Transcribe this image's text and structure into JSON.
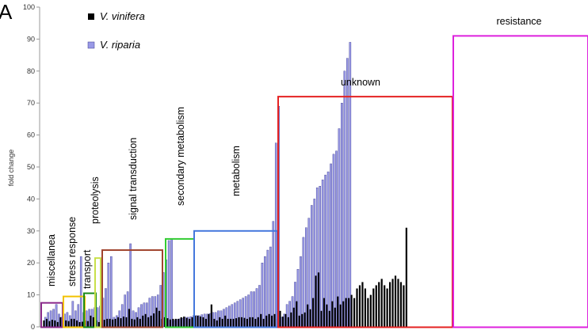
{
  "panel_label": "A",
  "chart_data": {
    "type": "bar",
    "ylabel": "fold change",
    "xlabel": "",
    "ylim": [
      0,
      100
    ],
    "yticks": [
      0,
      10,
      20,
      30,
      40,
      50,
      60,
      70,
      80,
      90,
      100
    ],
    "grid": false,
    "legend_position": "top-left",
    "series": [
      {
        "name": "V. vinifera",
        "color": "#000000",
        "values": [
          2,
          2.5,
          1.8,
          2.2,
          2,
          1.5,
          3,
          2.5,
          2,
          1.8,
          2.5,
          2.5,
          2,
          1.5,
          1.6,
          2,
          1.8,
          3.5,
          3,
          2,
          1.5,
          2,
          2.2,
          2.5,
          2.5,
          2.3,
          2.5,
          3,
          2.7,
          3.2,
          3,
          5.6,
          2.5,
          2.3,
          3,
          2.5,
          3.5,
          4,
          3,
          3.5,
          4.2,
          6,
          5,
          2.5,
          3,
          2.7,
          2.3,
          2.5,
          2.5,
          2.5,
          3,
          3.2,
          2.8,
          2.5,
          3,
          3.5,
          3.5,
          3.2,
          3,
          2.5,
          4,
          7,
          2.5,
          2,
          3,
          2.5,
          3.5,
          2.5,
          2.5,
          2.5,
          2.7,
          3,
          3,
          2.8,
          2.5,
          3,
          3,
          2.5,
          3,
          4,
          2.5,
          3.5,
          4,
          3.5,
          4,
          2.5,
          5,
          3.2,
          4,
          3,
          4.5,
          6,
          8,
          3.5,
          4,
          4.5,
          7,
          5.5,
          9,
          16,
          17,
          5,
          9,
          7,
          5,
          8,
          6,
          9.5,
          7,
          8,
          9,
          9,
          10,
          9,
          12,
          13,
          14,
          12,
          9,
          10,
          12,
          13,
          14,
          15,
          13,
          12,
          14,
          15,
          16,
          15,
          14,
          13,
          31
        ]
      },
      {
        "name": "V. riparia",
        "color": "#9999e6",
        "values": [
          3,
          4.5,
          5,
          5.5,
          7,
          4,
          3,
          4,
          4.5,
          3.5,
          8,
          5,
          7,
          22,
          4.5,
          5,
          5.5,
          5.5,
          6,
          6,
          6.5,
          9,
          12,
          20,
          22,
          3,
          3.5,
          5,
          7,
          10,
          11,
          26,
          5,
          4.5,
          6,
          7,
          7.5,
          7.5,
          9,
          9.5,
          9.5,
          10,
          13,
          17,
          21,
          27,
          27.5,
          2,
          2.3,
          2.5,
          2.7,
          3,
          3,
          3.2,
          3.5,
          3.5,
          3.5,
          3.8,
          4,
          4,
          4.2,
          4.5,
          4.5,
          5,
          5,
          5.5,
          6,
          6.5,
          7,
          7.5,
          8,
          8.5,
          9,
          9.5,
          10,
          11,
          11,
          12,
          13,
          20,
          22,
          24,
          25,
          33,
          57.5,
          69,
          3,
          4,
          7,
          8,
          9.5,
          14,
          18,
          22,
          28,
          31,
          34,
          38,
          40,
          43.5,
          44,
          46,
          47.5,
          48.5,
          51,
          54,
          55,
          62,
          70,
          80,
          84,
          89
        ]
      }
    ],
    "groups": [
      {
        "label": "miscellanea"
      },
      {
        "label": "stress response"
      },
      {
        "label": "transport"
      },
      {
        "label": "proteolysis"
      },
      {
        "label": "signal transduction"
      },
      {
        "label": "secondary metabolism"
      },
      {
        "label": "metabolism"
      },
      {
        "label": "unknown"
      },
      {
        "label": "resistance"
      }
    ],
    "group_colors": [
      "#8b2a8b",
      "#f2c200",
      "#1a8a1a",
      "#c8e04a",
      "#a0442e",
      "#33cc33",
      "#4477dd",
      "#e52222",
      "#dd22dd"
    ]
  }
}
